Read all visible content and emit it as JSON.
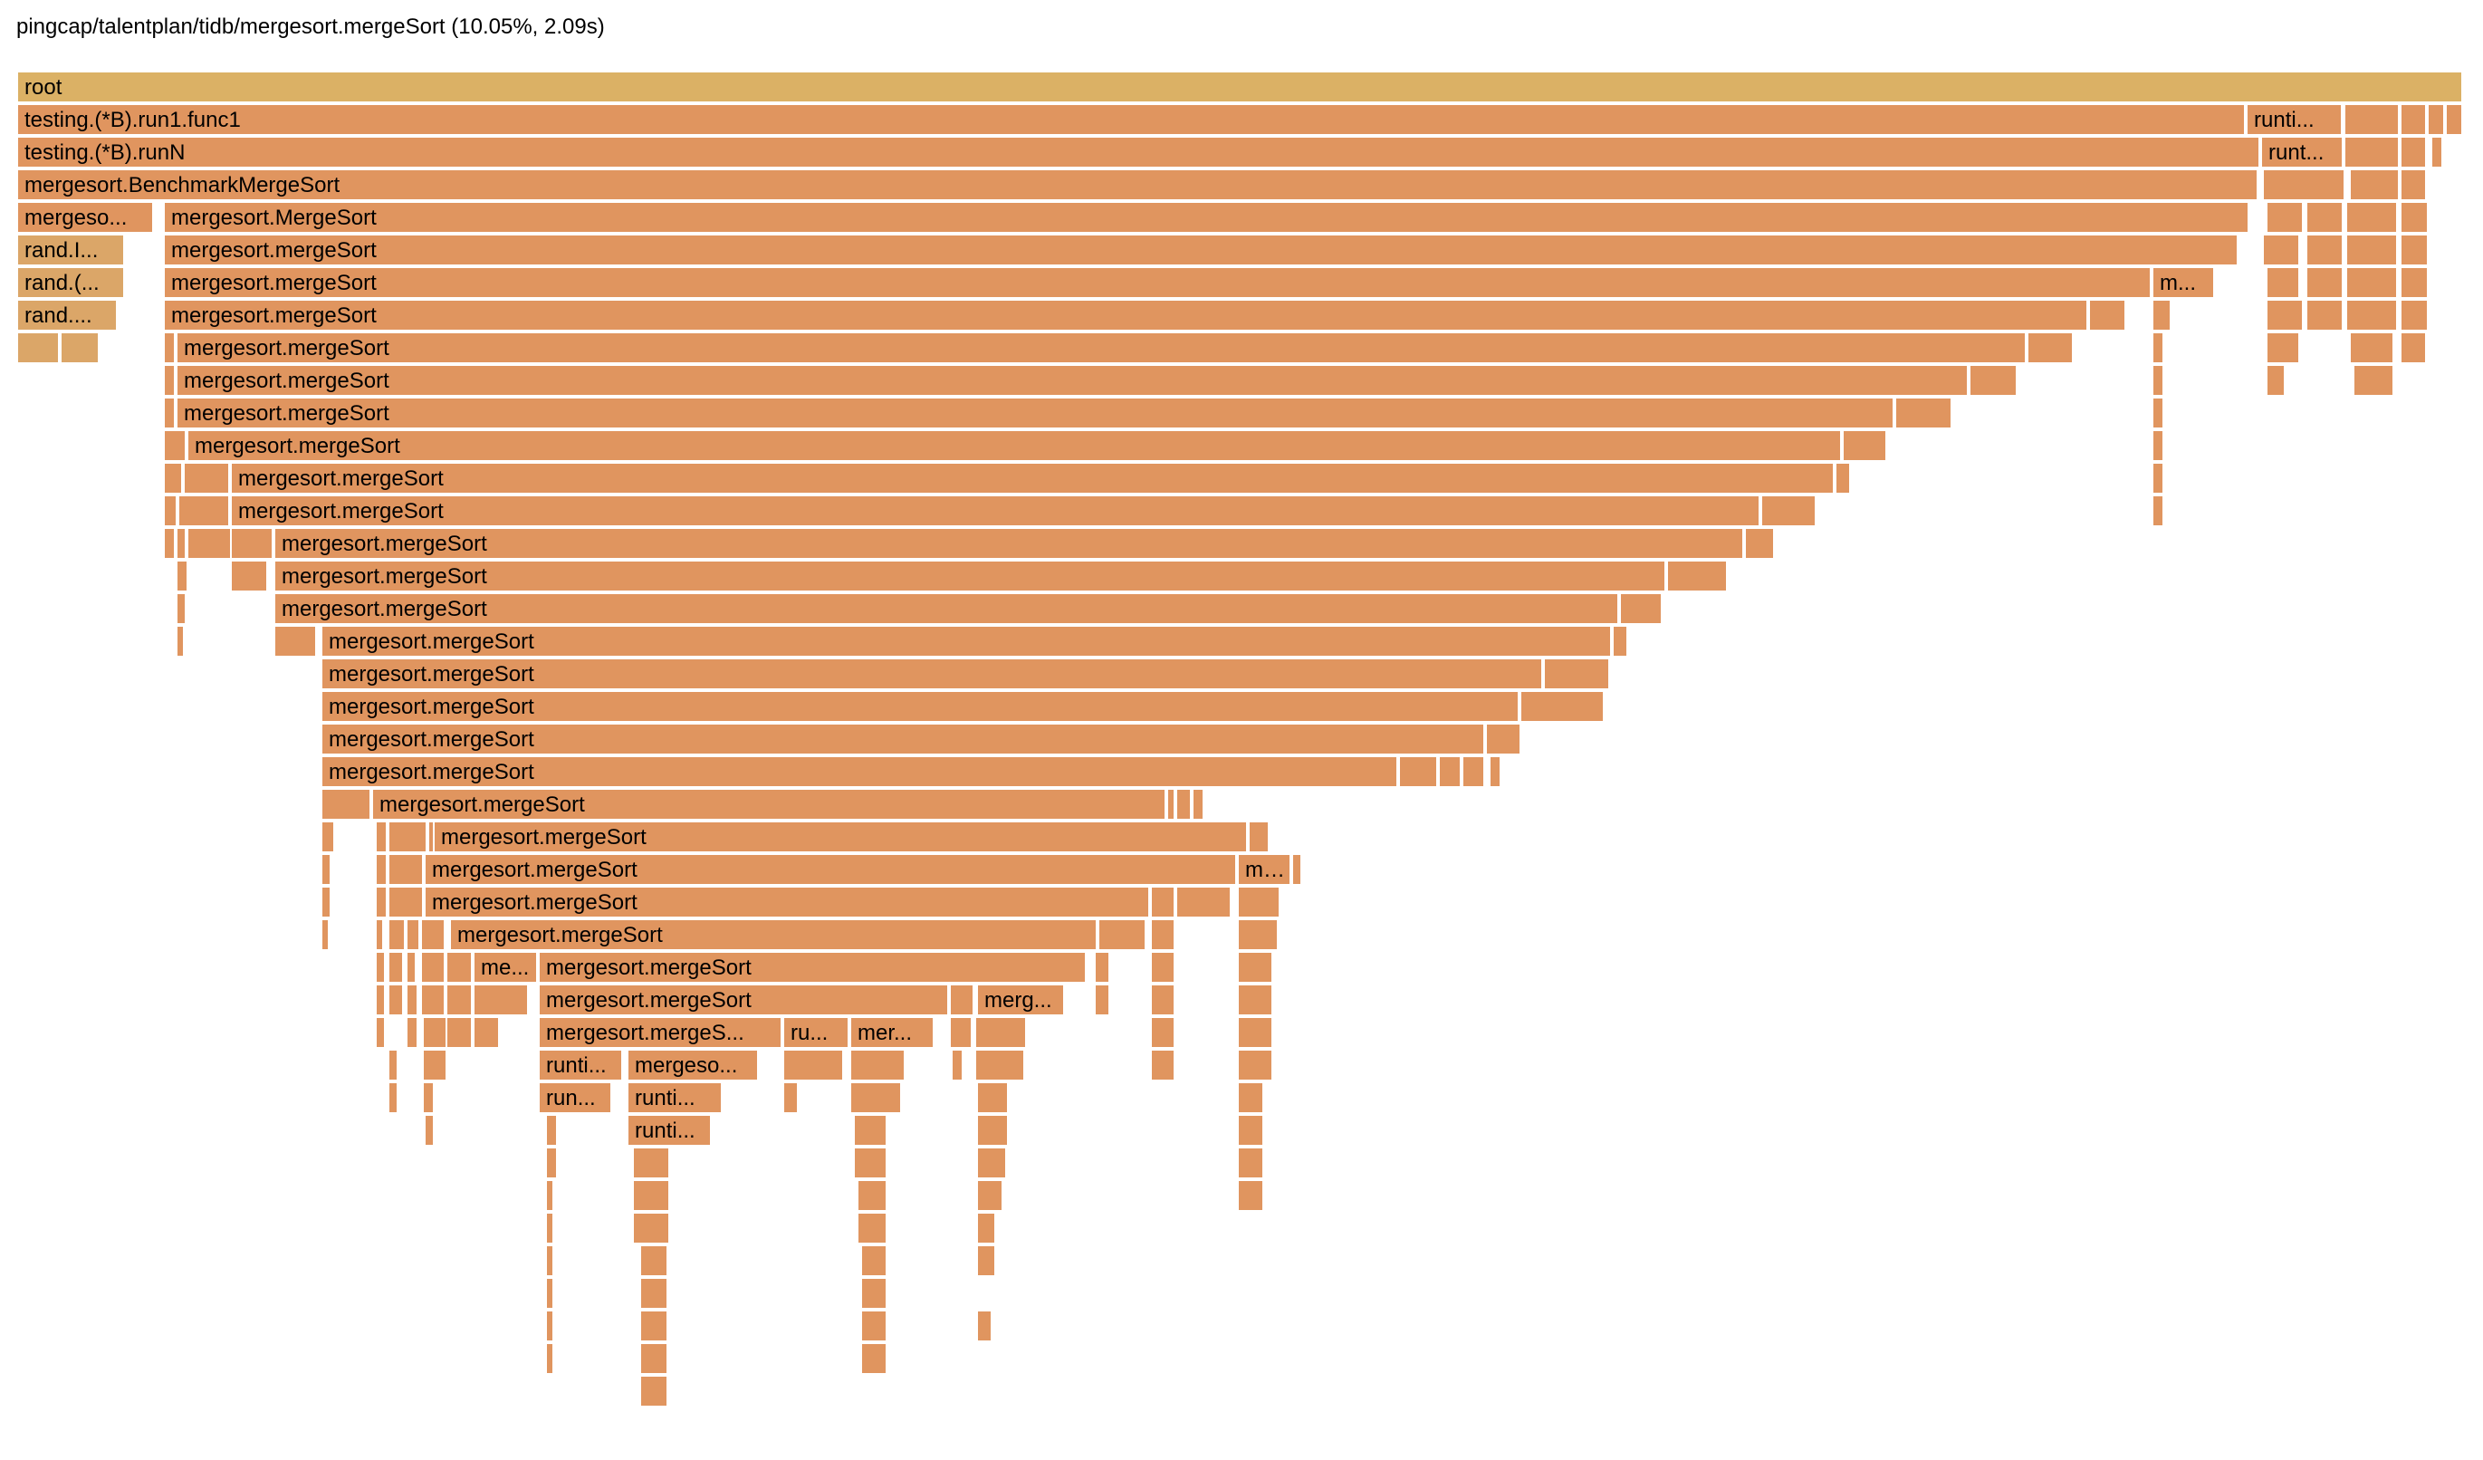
{
  "header": {
    "title": "pingcap/talentplan/tidb/mergesort.mergeSort (10.05%, 2.09s)"
  },
  "colors": {
    "root": "#dbb165",
    "frame": "#e0955f",
    "rand": "#dba668"
  },
  "flamegraph": {
    "labels": {
      "root": "root",
      "run1": "testing.(*B).run1.func1",
      "runN": "testing.(*B).runN",
      "bench": "mergesort.BenchmarkMergeSort",
      "mergesortShort": "mergeso...",
      "MergeSort": "mergesort.MergeSort",
      "mergeSort": "mergesort.mergeSort",
      "randI": "rand.I...",
      "randParen": "rand.(...",
      "randDots": "rand....",
      "runti": "runti...",
      "runt": "runt...",
      "run": "run...",
      "m": "m...",
      "merg": "merg...",
      "me": "me...",
      "mer": "mer...",
      "ru": "ru...",
      "mergeS": "mergesort.mergeS...",
      "mergeso": "mergeso..."
    }
  }
}
